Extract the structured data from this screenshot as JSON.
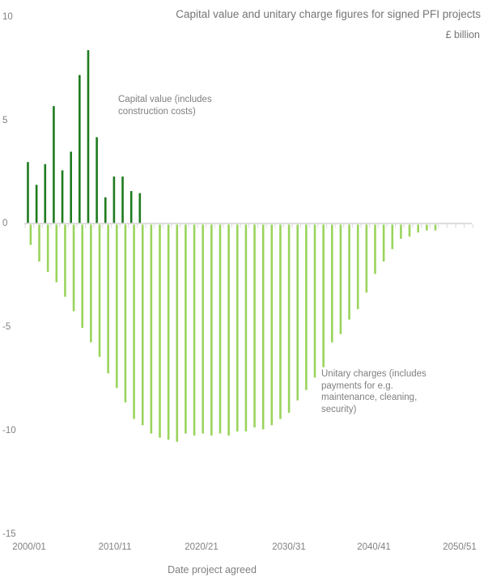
{
  "title": "Capital value and unitary charge figures for signed PFI projects",
  "subtitle": "£ billion",
  "x_axis_title": "Date project agreed",
  "annotations": {
    "capital": {
      "line1": "Capital value (includes",
      "line2": "construction costs)"
    },
    "unitary": {
      "line1": "Unitary charges (includes",
      "line2": "payments for e.g.",
      "line3": "maintenance, cleaning,",
      "line4": "security)"
    }
  },
  "chart_data": {
    "type": "bar",
    "title": "Capital value and unitary charge figures for signed PFI projects",
    "unit_label": "£ billion",
    "xlabel": "Date project agreed",
    "ylabel": "",
    "ylim": [
      -15,
      10
    ],
    "grid": false,
    "legend_position": "inline-annotations",
    "y_ticks": [
      10,
      5,
      0,
      -5,
      -10,
      -15
    ],
    "y_tick_labels": [
      "10",
      "5",
      "0",
      "-5",
      "-10",
      "-15"
    ],
    "x_tick_labels": [
      "2000/01",
      "2010/11",
      "2020/21",
      "2030/31",
      "2040/41",
      "2050/51"
    ],
    "categories": [
      "2000/01",
      "2001/02",
      "2002/03",
      "2003/04",
      "2004/05",
      "2005/06",
      "2006/07",
      "2007/08",
      "2008/09",
      "2009/10",
      "2010/11",
      "2011/12",
      "2012/13",
      "2013/14",
      "2014/15",
      "2015/16",
      "2016/17",
      "2017/18",
      "2018/19",
      "2019/20",
      "2020/21",
      "2021/22",
      "2022/23",
      "2023/24",
      "2024/25",
      "2025/26",
      "2026/27",
      "2027/28",
      "2028/29",
      "2029/30",
      "2030/31",
      "2031/32",
      "2032/33",
      "2033/34",
      "2034/35",
      "2035/36",
      "2036/37",
      "2037/38",
      "2038/39",
      "2039/40",
      "2040/41",
      "2041/42",
      "2042/43",
      "2043/44",
      "2044/45",
      "2045/46",
      "2046/47",
      "2047/48"
    ],
    "series": [
      {
        "name": "Capital value (includes construction costs)",
        "color": "#1e7b1e",
        "values": [
          3.0,
          1.9,
          2.9,
          5.7,
          2.6,
          3.5,
          7.2,
          8.4,
          4.2,
          1.3,
          2.3,
          2.3,
          1.6,
          1.5,
          null,
          null,
          null,
          null,
          null,
          null,
          null,
          null,
          null,
          null,
          null,
          null,
          null,
          null,
          null,
          null,
          null,
          null,
          null,
          null,
          null,
          null,
          null,
          null,
          null,
          null,
          null,
          null,
          null,
          null,
          null,
          null,
          null,
          null
        ]
      },
      {
        "name": "Unitary charges (includes payments for e.g. maintenance, cleaning, security)",
        "color": "#9ad45c",
        "values": [
          -1.0,
          -1.8,
          -2.3,
          -2.8,
          -3.5,
          -4.2,
          -5.0,
          -5.7,
          -6.4,
          -7.2,
          -7.9,
          -8.6,
          -9.4,
          -9.7,
          -10.1,
          -10.3,
          -10.4,
          -10.5,
          -10.1,
          -10.2,
          -10.1,
          -10.2,
          -10.1,
          -10.2,
          -10.0,
          -10.0,
          -9.8,
          -9.9,
          -9.7,
          -9.4,
          -9.1,
          -8.5,
          -8.0,
          -7.4,
          -6.9,
          -5.7,
          -5.3,
          -4.6,
          -4.1,
          -3.3,
          -2.4,
          -1.8,
          -1.2,
          -0.7,
          -0.6,
          -0.4,
          -0.3,
          -0.3
        ]
      }
    ],
    "colors": {
      "capital_bar": "#1e7b1e",
      "unitary_bar": "#9ad45c",
      "axis": "#d9d9d9",
      "text": "#808080"
    }
  }
}
